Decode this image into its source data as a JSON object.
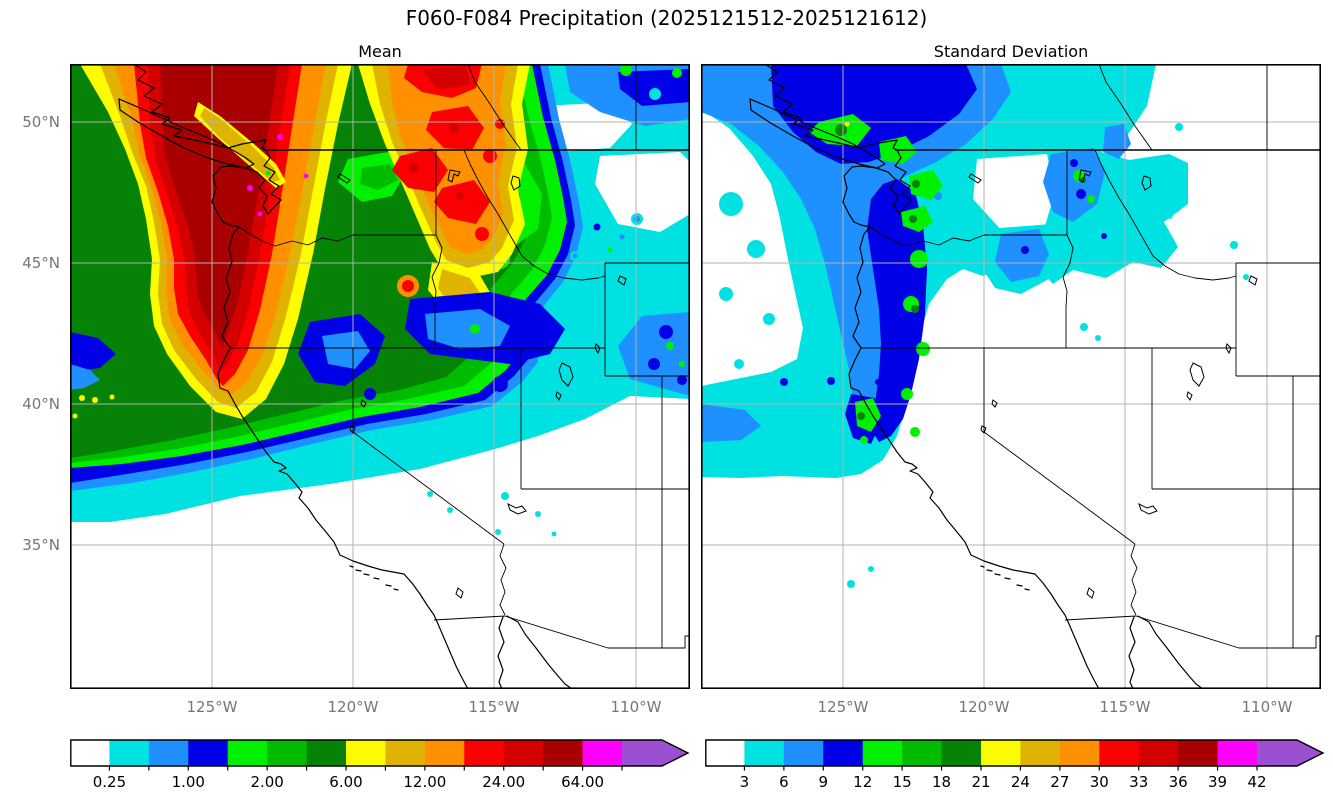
{
  "figure": {
    "title": "F060-F084 Precipitation (2025121512-2025121612)"
  },
  "panels": {
    "mean": {
      "title": "Mean",
      "x_tick_labels": [
        "125°W",
        "120°W",
        "115°W",
        "110°W"
      ],
      "y_tick_labels": [
        "50°N",
        "45°N",
        "40°N",
        "35°N"
      ]
    },
    "std": {
      "title": "Standard Deviation",
      "x_tick_labels": [
        "125°W",
        "120°W",
        "115°W",
        "110°W"
      ],
      "y_tick_labels": []
    }
  },
  "colorbars": {
    "mean": {
      "tick_labels": [
        "0.25",
        "1.00",
        "2.00",
        "6.00",
        "12.00",
        "24.00",
        "64.00"
      ],
      "labeled_boundaries": [
        1,
        3,
        5,
        7,
        9,
        11,
        13
      ]
    },
    "std": {
      "tick_labels": [
        "3",
        "6",
        "9",
        "12",
        "15",
        "18",
        "21",
        "24",
        "27",
        "30",
        "33",
        "36",
        "39",
        "42"
      ],
      "labeled_boundaries": [
        1,
        2,
        3,
        4,
        5,
        6,
        7,
        8,
        9,
        10,
        11,
        12,
        13,
        14
      ]
    }
  },
  "palette": {
    "colors": [
      "#ffffff",
      "#00e2e2",
      "#1e90ff",
      "#0000e6",
      "#00f000",
      "#00bc00",
      "#068206",
      "#fdfd00",
      "#dfb300",
      "#ff9000",
      "#fb0000",
      "#d40000",
      "#a80000",
      "#ff00ff"
    ],
    "extend_color": "#9b4fd1",
    "n_segments": 14
  },
  "chart_data": [
    {
      "type": "heatmap",
      "title": "Mean",
      "variable": "Precipitation, ensemble mean, forecast hours F060-F084, valid 2025121512-2025121612",
      "region": "Western North America (Pacific Northwest, California, Great Basin, Northern Rockies)",
      "x_ticks": [
        "125°W",
        "120°W",
        "115°W",
        "110°W"
      ],
      "y_ticks": [
        "50°N",
        "45°N",
        "40°N",
        "35°N"
      ],
      "lon_range_est": [
        -130,
        -108
      ],
      "lat_range_est": [
        30,
        52.2
      ],
      "grid": true,
      "colorbar_labeled_levels": [
        0.25,
        1.0,
        2.0,
        6.0,
        12.0,
        24.0,
        64.0
      ],
      "colorbar_extend": "max",
      "legend_position": "bottom",
      "pattern_summary": "Maximum band (24 to >64, dark red with magenta specks) along the BC coast, western Washington and the Cascades tapering to NW California; secondary red/orange maxima over NE Washington, N Idaho and W Montana; green (2-6) over the offshore Pacific and E Oregon/Idaho; blue/cyan (0.25-1) over SE Idaho, Wyoming and E Montana; white (<0.25) over Nevada, Utah, Arizona and the SE of the domain."
    },
    {
      "type": "heatmap",
      "title": "Standard Deviation",
      "variable": "Precipitation, ensemble standard deviation, forecast hours F060-F084, valid 2025121512-2025121612",
      "region": "Western North America (same domain as Mean panel)",
      "x_ticks": [
        "125°W",
        "120°W",
        "115°W",
        "110°W"
      ],
      "y_ticks": [],
      "lon_range_est": [
        -130,
        -108
      ],
      "lat_range_est": [
        30,
        52.2
      ],
      "grid": true,
      "colorbar_labeled_levels": [
        3,
        6,
        9,
        12,
        15,
        18,
        21,
        24,
        27,
        30,
        33,
        36,
        39,
        42
      ],
      "colorbar_extend": "max",
      "legend_position": "bottom",
      "pattern_summary": "Mostly white (<3) over the south and east; cyan (3-6) over BC, Washington, Idaho and Montana with a band down the coast to N California; blue (6-12) along the BC coast and the Washington/Oregon Cascades; dark blue and green spots (12-18) over Vancouver Island, Puget Sound, the Cascades and N Idaho; one tiny yellow speck (21-24) on Vancouver Island."
    }
  ]
}
